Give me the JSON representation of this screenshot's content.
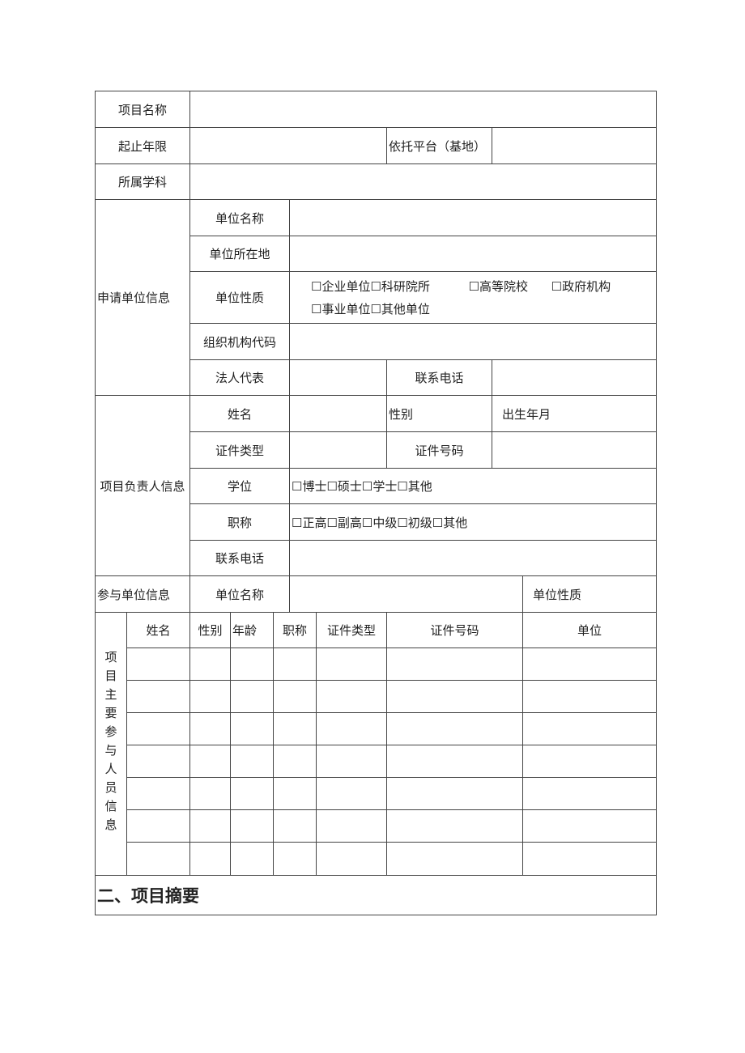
{
  "form": {
    "project_name_label": "项目名称",
    "period_label": "起止年限",
    "platform_label": "依托平台（基地）",
    "discipline_label": "所属学科",
    "applicant": {
      "section_label": "申请单位信息",
      "unit_name_label": "单位名称",
      "location_label": "单位所在地",
      "nature_label": "单位性质",
      "nature_options_line1": "☐企业单位☐科研院所          ☐高等院校      ☐政府机构",
      "nature_options_line2": "☐事业单位☐其他单位",
      "org_code_label": "组织机构代码",
      "legal_rep_label": "法人代表",
      "phone_label": "联系电话"
    },
    "leader": {
      "section_label": "项目负责人信息",
      "name_label": "姓名",
      "gender_label": "性别",
      "birth_label": "出生年月",
      "id_type_label": "证件类型",
      "id_number_label": "证件号码",
      "degree_label": "学位",
      "degree_options": "☐博士☐硕士☐学士☐其他",
      "title_label": "职称",
      "title_options": "☐正高☐副高☐中级☐初级☐其他",
      "phone_label": "联系电话"
    },
    "partner": {
      "section_label": "参与单位信息",
      "unit_name_label": "单位名称",
      "nature_label": "单位性质"
    },
    "members": {
      "section_label": "项目主要参与人员信息",
      "columns": [
        "姓名",
        "性别",
        "年龄",
        "职称",
        "证件类型",
        "证件号码",
        "单位"
      ],
      "rows": [
        [
          "",
          "",
          "",
          "",
          "",
          "",
          ""
        ],
        [
          "",
          "",
          "",
          "",
          "",
          "",
          ""
        ],
        [
          "",
          "",
          "",
          "",
          "",
          "",
          ""
        ],
        [
          "",
          "",
          "",
          "",
          "",
          "",
          ""
        ],
        [
          "",
          "",
          "",
          "",
          "",
          "",
          ""
        ],
        [
          "",
          "",
          "",
          "",
          "",
          "",
          ""
        ],
        [
          "",
          "",
          "",
          "",
          "",
          "",
          ""
        ]
      ]
    },
    "summary_heading": "二、项目摘要"
  }
}
